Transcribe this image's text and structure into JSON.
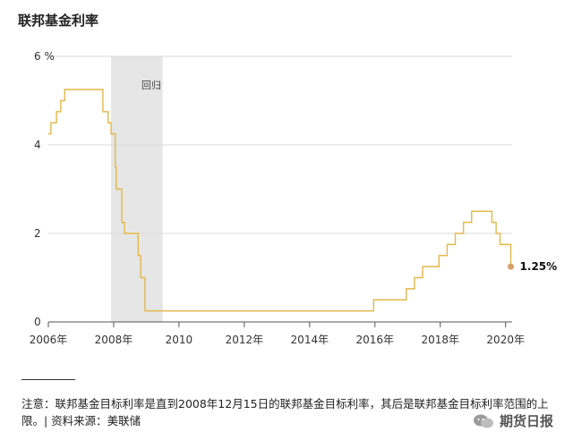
{
  "header": {
    "title": "联邦基金利率"
  },
  "chart_data": {
    "type": "line",
    "title": "联邦基金利率",
    "xlabel": "",
    "ylabel": "",
    "xlim": [
      2006.0,
      2020.2
    ],
    "ylim": [
      0,
      6
    ],
    "y_ticks": [
      {
        "value": 0,
        "label": "0"
      },
      {
        "value": 2,
        "label": "2"
      },
      {
        "value": 4,
        "label": "4"
      },
      {
        "value": 6,
        "label": "6 %"
      }
    ],
    "x_ticks": [
      {
        "value": 2006,
        "label": "2006年"
      },
      {
        "value": 2008,
        "label": "2008年"
      },
      {
        "value": 2010,
        "label": "2010"
      },
      {
        "value": 2012,
        "label": "2012年"
      },
      {
        "value": 2014,
        "label": "2014年"
      },
      {
        "value": 2016,
        "label": "2016年"
      },
      {
        "value": 2018,
        "label": "2018年"
      },
      {
        "value": 2020,
        "label": "2020年"
      }
    ],
    "grid": true,
    "legend": "none",
    "recession": {
      "start": 2007.92,
      "end": 2009.5,
      "label": "回归"
    },
    "series": [
      {
        "color": "#e2b84a",
        "step": true,
        "points": [
          [
            2006.0,
            4.25
          ],
          [
            2006.08,
            4.5
          ],
          [
            2006.25,
            4.75
          ],
          [
            2006.38,
            5.0
          ],
          [
            2006.5,
            5.25
          ],
          [
            2007.67,
            4.75
          ],
          [
            2007.83,
            4.5
          ],
          [
            2007.92,
            4.25
          ],
          [
            2008.05,
            3.5
          ],
          [
            2008.08,
            3.0
          ],
          [
            2008.25,
            2.25
          ],
          [
            2008.33,
            2.0
          ],
          [
            2008.75,
            1.5
          ],
          [
            2008.83,
            1.0
          ],
          [
            2008.96,
            0.25
          ],
          [
            2015.96,
            0.5
          ],
          [
            2016.96,
            0.75
          ],
          [
            2017.21,
            1.0
          ],
          [
            2017.46,
            1.25
          ],
          [
            2017.96,
            1.5
          ],
          [
            2018.21,
            1.75
          ],
          [
            2018.46,
            2.0
          ],
          [
            2018.71,
            2.25
          ],
          [
            2018.96,
            2.5
          ],
          [
            2019.58,
            2.25
          ],
          [
            2019.71,
            2.0
          ],
          [
            2019.83,
            1.75
          ],
          [
            2020.16,
            1.25
          ]
        ]
      }
    ],
    "end_value": 1.25,
    "end_label": "1.25%",
    "end_marker_color": "#d7a16a"
  },
  "footnote": {
    "text": "注意：联邦基金目标利率是直到2008年12月15日的联邦基金目标利率，其后是联邦基金目标利率范围的上限。| 资料来源：美联储"
  },
  "watermark": {
    "text": "期货日报",
    "icon": "wechat-icon"
  }
}
